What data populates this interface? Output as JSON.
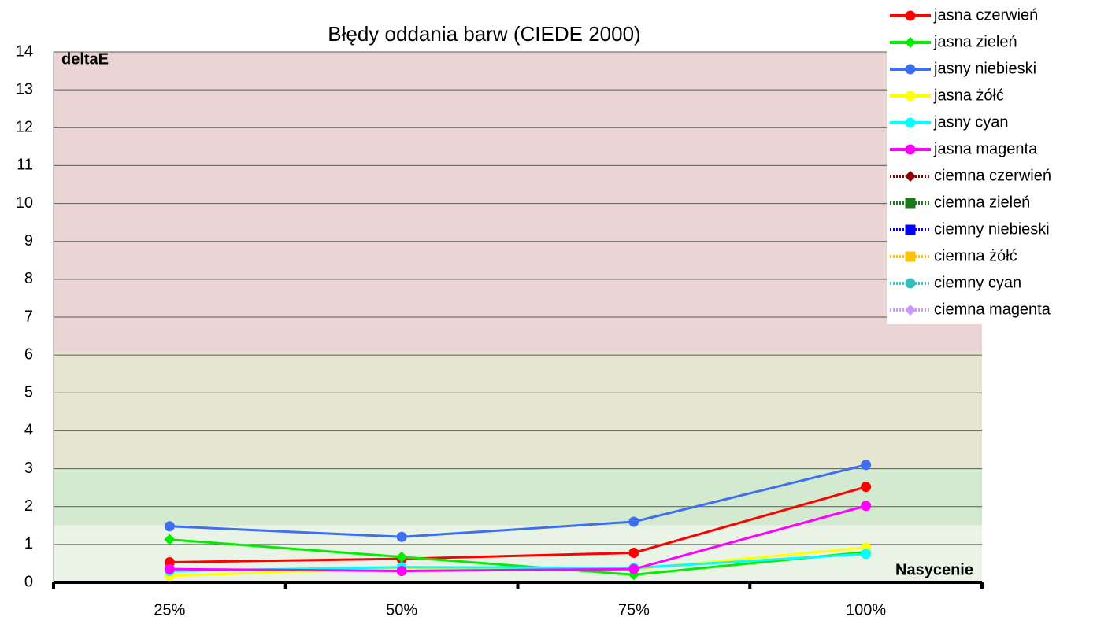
{
  "chart_data": {
    "type": "line",
    "title": "Błędy oddania barw (CIEDE 2000)",
    "y_label": "deltaE",
    "x_label": "Nasycenie",
    "categories": [
      "25%",
      "50%",
      "75%",
      "100%"
    ],
    "ylim": [
      0,
      14
    ],
    "yticks": [
      0,
      1,
      2,
      3,
      4,
      5,
      6,
      7,
      8,
      9,
      10,
      11,
      12,
      13,
      14
    ],
    "grid": true,
    "legend": "top-right",
    "bands": [
      {
        "from": 0,
        "to": 1.5,
        "color": "#e9f3e6"
      },
      {
        "from": 1.5,
        "to": 3,
        "color": "#d3ead0"
      },
      {
        "from": 3,
        "to": 6.07,
        "color": "#e6e5cf"
      },
      {
        "from": 6.07,
        "to": 14,
        "color": "#ebd4d4"
      }
    ],
    "series": [
      {
        "name": "jasna czerwień",
        "color": "#ff0000",
        "marker": "circle",
        "dash": "solid",
        "values": [
          0.53,
          0.62,
          0.78,
          2.52
        ]
      },
      {
        "name": "jasna zieleń",
        "color": "#00ee00",
        "marker": "diamond",
        "dash": "solid",
        "values": [
          1.13,
          0.67,
          0.2,
          0.8
        ]
      },
      {
        "name": "jasny niebieski",
        "color": "#3d6ff0",
        "marker": "circle",
        "dash": "solid",
        "values": [
          1.48,
          1.2,
          1.6,
          3.1
        ]
      },
      {
        "name": "jasna żółć",
        "color": "#ffff00",
        "marker": "circle",
        "dash": "solid",
        "values": [
          0.17,
          0.38,
          0.35,
          0.92
        ]
      },
      {
        "name": "jasny cyan",
        "color": "#00ffff",
        "marker": "circle",
        "dash": "solid",
        "values": [
          0.3,
          0.4,
          0.38,
          0.75
        ]
      },
      {
        "name": "jasna magenta",
        "color": "#ff00ff",
        "marker": "circle",
        "dash": "solid",
        "values": [
          0.35,
          0.3,
          0.35,
          2.02
        ]
      },
      {
        "name": "ciemna czerwień",
        "color": "#8b0000",
        "marker": "diamond",
        "dash": "dotted",
        "values": [
          null,
          null,
          null,
          null
        ]
      },
      {
        "name": "ciemna zieleń",
        "color": "#1a7a1a",
        "marker": "square",
        "dash": "dotted",
        "values": [
          null,
          null,
          null,
          null
        ]
      },
      {
        "name": "ciemny niebieski",
        "color": "#0000ff",
        "marker": "square",
        "dash": "dotted",
        "values": [
          null,
          null,
          null,
          null
        ]
      },
      {
        "name": "ciemna żółć",
        "color": "#ffc000",
        "marker": "square",
        "dash": "dotted",
        "values": [
          null,
          null,
          null,
          null
        ]
      },
      {
        "name": "ciemny cyan",
        "color": "#33c0c0",
        "marker": "circle",
        "dash": "dotted",
        "values": [
          null,
          null,
          null,
          null
        ]
      },
      {
        "name": "ciemna magenta",
        "color": "#cc99ff",
        "marker": "diamond",
        "dash": "dotted",
        "values": [
          null,
          null,
          null,
          null
        ]
      }
    ]
  }
}
